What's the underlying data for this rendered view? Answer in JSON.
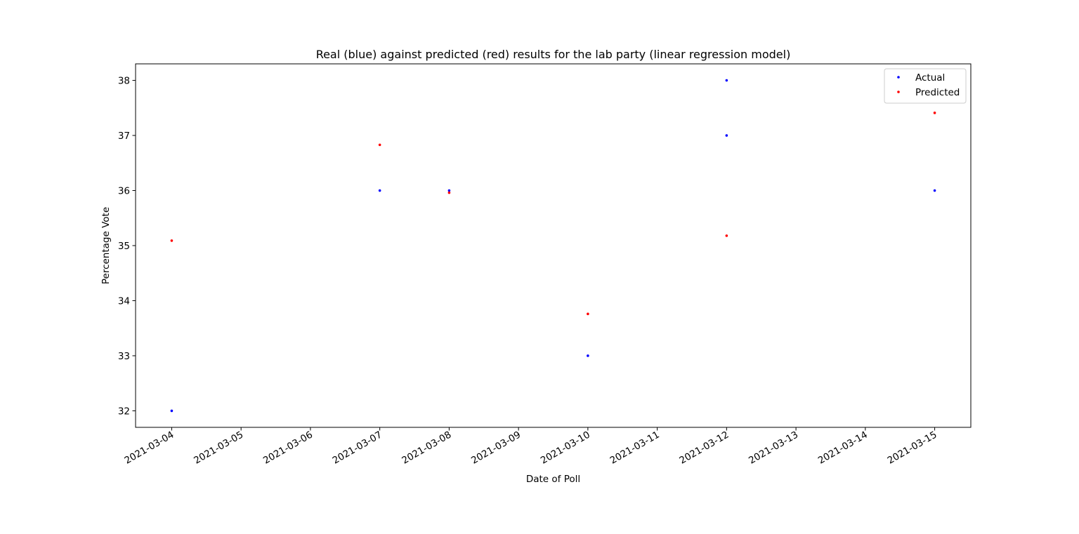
{
  "chart_data": {
    "type": "scatter",
    "title": "Real (blue) against predicted (red) results for the lab party (linear regression model)",
    "xlabel": "Date of Poll",
    "ylabel": "Percentage Vote",
    "x_ticks": [
      "2021-03-04",
      "2021-03-05",
      "2021-03-06",
      "2021-03-07",
      "2021-03-08",
      "2021-03-09",
      "2021-03-10",
      "2021-03-11",
      "2021-03-12",
      "2021-03-13",
      "2021-03-14",
      "2021-03-15"
    ],
    "y_ticks": [
      "32",
      "33",
      "34",
      "35",
      "36",
      "37",
      "38"
    ],
    "xlim": [
      "2021-03-03T11:30",
      "2021-03-15T12:30"
    ],
    "ylim": [
      31.7,
      38.3
    ],
    "grid": false,
    "legend_position": "upper right",
    "series": [
      {
        "name": "Actual",
        "color": "#0000ff",
        "points": [
          {
            "x": "2021-03-04",
            "y": 32
          },
          {
            "x": "2021-03-07",
            "y": 36
          },
          {
            "x": "2021-03-08",
            "y": 36
          },
          {
            "x": "2021-03-10",
            "y": 33
          },
          {
            "x": "2021-03-12",
            "y": 38
          },
          {
            "x": "2021-03-12",
            "y": 37
          },
          {
            "x": "2021-03-15",
            "y": 36
          }
        ]
      },
      {
        "name": "Predicted",
        "color": "#ff0000",
        "points": [
          {
            "x": "2021-03-04",
            "y": 35.09
          },
          {
            "x": "2021-03-07",
            "y": 36.83
          },
          {
            "x": "2021-03-08",
            "y": 35.96
          },
          {
            "x": "2021-03-10",
            "y": 33.76
          },
          {
            "x": "2021-03-12",
            "y": 35.18
          },
          {
            "x": "2021-03-15",
            "y": 37.41
          }
        ]
      }
    ]
  }
}
